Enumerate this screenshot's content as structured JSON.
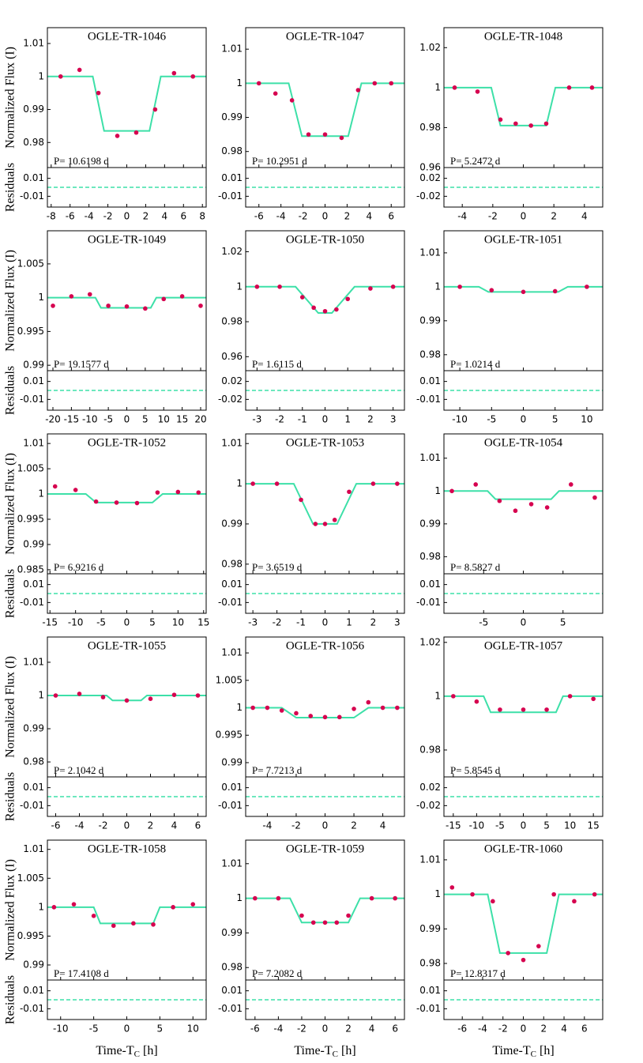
{
  "ylabel": "Normalized Flux (I)",
  "ylabel_resid": "Residuals",
  "xlabel": {
    "text": "Time-T",
    "sub": "C",
    "unit": "[h]"
  },
  "chart_data": [
    {
      "type": "line",
      "title": "OGLE-TR-1046",
      "annotation": "P= 10.6198 d",
      "xlim": [
        -8.4,
        8.4
      ],
      "xticks": [
        -8,
        -6,
        -4,
        -2,
        0,
        2,
        4,
        6,
        8
      ],
      "ylim": [
        0.9724,
        1.0148
      ],
      "yticks": [
        0.98,
        0.99,
        1,
        1.01
      ],
      "resid_ylim": [
        -0.022,
        0.022
      ],
      "resid_yticks": [
        -0.01,
        0.01
      ],
      "series": [
        {
          "color": "#3de0a8",
          "x": [
            -8.4,
            -3.6,
            -2.4,
            2.4,
            3.6,
            8.4
          ],
          "values": [
            1,
            1,
            0.9835,
            0.9835,
            1,
            1
          ]
        },
        {
          "color": "#d6004f",
          "x": [
            -7,
            -5,
            -3,
            -1,
            1,
            3,
            5,
            7
          ],
          "values": [
            1.0,
            1.002,
            0.995,
            0.982,
            0.983,
            0.99,
            1.001,
            1.0
          ]
        }
      ]
    },
    {
      "type": "line",
      "title": "OGLE-TR-1047",
      "annotation": "P= 10.2951 d",
      "xlim": [
        -7.2,
        7.2
      ],
      "xticks": [
        -6,
        -4,
        -2,
        0,
        2,
        4,
        6
      ],
      "ylim": [
        0.9753,
        1.0163
      ],
      "yticks": [
        0.98,
        0.99,
        1,
        1.01
      ],
      "resid_ylim": [
        -0.022,
        0.022
      ],
      "resid_yticks": [
        -0.01,
        0.01
      ],
      "series": [
        {
          "color": "#3de0a8",
          "x": [
            -7.2,
            -3.3,
            -2.1,
            2.1,
            3.3,
            7.2
          ],
          "values": [
            1,
            1,
            0.9845,
            0.9845,
            1,
            1
          ]
        },
        {
          "color": "#d6004f",
          "x": [
            -6,
            -4.5,
            -3,
            -1.5,
            0,
            1.5,
            3,
            4.5,
            6
          ],
          "values": [
            1.0,
            0.997,
            0.995,
            0.985,
            0.985,
            0.984,
            0.998,
            1.0,
            1.0
          ]
        }
      ]
    },
    {
      "type": "line",
      "title": "OGLE-TR-1048",
      "annotation": "P= 5.2472 d",
      "xlim": [
        -5.2,
        5.2
      ],
      "xticks": [
        -4,
        -2,
        0,
        2,
        4
      ],
      "ylim": [
        0.96,
        1.03
      ],
      "yticks": [
        0.96,
        0.98,
        1,
        1.02
      ],
      "resid_ylim": [
        -0.044,
        0.044
      ],
      "resid_yticks": [
        -0.02,
        0.02
      ],
      "series": [
        {
          "color": "#3de0a8",
          "x": [
            -5.2,
            -2.1,
            -1.5,
            1.5,
            2.1,
            5.2
          ],
          "values": [
            1,
            1,
            0.981,
            0.981,
            1,
            1
          ]
        },
        {
          "color": "#d6004f",
          "x": [
            -4.5,
            -3,
            -1.5,
            -0.5,
            0.5,
            1.5,
            3,
            4.5
          ],
          "values": [
            1.0,
            0.998,
            0.984,
            0.982,
            0.981,
            0.982,
            1.0,
            1.0
          ]
        }
      ]
    },
    {
      "type": "line",
      "title": "OGLE-TR-1049",
      "annotation": "P= 19.1577 d",
      "xlim": [
        -21.5,
        21.5
      ],
      "xticks": [
        -20,
        -15,
        -10,
        -5,
        0,
        5,
        10,
        15,
        20
      ],
      "ylim": [
        0.9892,
        1.0099
      ],
      "yticks": [
        0.99,
        0.995,
        1,
        1.005
      ],
      "resid_ylim": [
        -0.022,
        0.022
      ],
      "resid_yticks": [
        -0.01,
        0.01
      ],
      "series": [
        {
          "color": "#3de0a8",
          "x": [
            -21.5,
            -8.5,
            -7,
            6.5,
            8,
            21.5
          ],
          "values": [
            1,
            1,
            0.9985,
            0.9985,
            1,
            1
          ]
        },
        {
          "color": "#d6004f",
          "x": [
            -20,
            -15,
            -10,
            -5,
            0,
            5,
            10,
            15,
            20
          ],
          "values": [
            0.9988,
            1.0002,
            1.0005,
            0.9988,
            0.9987,
            0.9984,
            0.9998,
            1.0002,
            0.9988
          ]
        }
      ]
    },
    {
      "type": "line",
      "title": "OGLE-TR-1050",
      "annotation": "P= 1.6115 d",
      "xlim": [
        -3.5,
        3.5
      ],
      "xticks": [
        -3,
        -2,
        -1,
        0,
        1,
        2,
        3
      ],
      "ylim": [
        0.952,
        1.032
      ],
      "yticks": [
        0.96,
        0.98,
        1,
        1.02
      ],
      "resid_ylim": [
        -0.044,
        0.044
      ],
      "resid_yticks": [
        -0.02,
        0.02
      ],
      "series": [
        {
          "color": "#3de0a8",
          "x": [
            -3.5,
            -1.3,
            -0.3,
            0.3,
            1.3,
            3.5
          ],
          "values": [
            1,
            1,
            0.985,
            0.985,
            1,
            1
          ]
        },
        {
          "color": "#d6004f",
          "x": [
            -3,
            -2,
            -1,
            -0.5,
            0,
            0.5,
            1,
            2,
            3
          ],
          "values": [
            1.0,
            1.0,
            0.994,
            0.988,
            0.986,
            0.987,
            0.993,
            0.999,
            1.0
          ]
        }
      ]
    },
    {
      "type": "line",
      "title": "OGLE-TR-1051",
      "annotation": "P= 1.0214 d",
      "xlim": [
        -12.5,
        12.5
      ],
      "xticks": [
        -10,
        -5,
        0,
        5,
        10
      ],
      "ylim": [
        0.9753,
        1.0165
      ],
      "yticks": [
        0.98,
        0.99,
        1,
        1.01
      ],
      "resid_ylim": [
        -0.022,
        0.022
      ],
      "resid_yticks": [
        -0.01,
        0.01
      ],
      "series": [
        {
          "color": "#3de0a8",
          "x": [
            -12.5,
            -7,
            -5.5,
            5.5,
            7,
            12.5
          ],
          "values": [
            1,
            1,
            0.9985,
            0.9985,
            1,
            1
          ]
        },
        {
          "color": "#d6004f",
          "x": [
            -10,
            -5,
            0,
            5,
            10
          ],
          "values": [
            1.0,
            0.999,
            0.9985,
            0.9987,
            1.0
          ]
        }
      ]
    },
    {
      "type": "line",
      "title": "OGLE-TR-1052",
      "annotation": "P= 6.9216 d",
      "xlim": [
        -15.5,
        15.5
      ],
      "xticks": [
        -15,
        -10,
        -5,
        0,
        5,
        10,
        15
      ],
      "ylim": [
        0.9842,
        1.0119
      ],
      "yticks": [
        0.985,
        0.99,
        0.995,
        1,
        1.005,
        1.01
      ],
      "resid_ylim": [
        -0.022,
        0.022
      ],
      "resid_yticks": [
        -0.01,
        0.01
      ],
      "series": [
        {
          "color": "#3de0a8",
          "x": [
            -15.5,
            -8,
            -6,
            5,
            7,
            15.5
          ],
          "values": [
            1,
            1,
            0.9983,
            0.9983,
            1,
            1
          ]
        },
        {
          "color": "#d6004f",
          "x": [
            -14,
            -10,
            -6,
            -2,
            2,
            6,
            10,
            14
          ],
          "values": [
            1.0015,
            1.0008,
            0.9985,
            0.9983,
            0.9982,
            1.0003,
            1.0004,
            1.0003
          ]
        }
      ]
    },
    {
      "type": "line",
      "title": "OGLE-TR-1053",
      "annotation": "P= 3.6519 d",
      "xlim": [
        -3.3,
        3.3
      ],
      "xticks": [
        -3,
        -2,
        -1,
        0,
        1,
        2,
        3
      ],
      "ylim": [
        0.9776,
        1.0124
      ],
      "yticks": [
        0.98,
        0.99,
        1,
        1.01
      ],
      "resid_ylim": [
        -0.022,
        0.022
      ],
      "resid_yticks": [
        -0.01,
        0.01
      ],
      "series": [
        {
          "color": "#3de0a8",
          "x": [
            -3.3,
            -1.3,
            -0.5,
            0.5,
            1.3,
            3.3
          ],
          "values": [
            1,
            1,
            0.99,
            0.99,
            1,
            1
          ]
        },
        {
          "color": "#d6004f",
          "x": [
            -3,
            -2,
            -1,
            -0.4,
            0,
            0.4,
            1,
            2,
            3
          ],
          "values": [
            1.0,
            1.0,
            0.996,
            0.99,
            0.99,
            0.991,
            0.998,
            1.0,
            1.0
          ]
        }
      ]
    },
    {
      "type": "line",
      "title": "OGLE-TR-1054",
      "annotation": "P= 8.5827 d",
      "xlim": [
        -10,
        10
      ],
      "xticks": [
        -5,
        0,
        5
      ],
      "ylim": [
        0.9748,
        1.0174
      ],
      "yticks": [
        0.98,
        0.99,
        1,
        1.01
      ],
      "resid_ylim": [
        -0.022,
        0.022
      ],
      "resid_yticks": [
        -0.01,
        0.01
      ],
      "series": [
        {
          "color": "#3de0a8",
          "x": [
            -10,
            -4.5,
            -3.5,
            3.5,
            4.5,
            10
          ],
          "values": [
            1,
            1,
            0.9975,
            0.9975,
            1,
            1
          ]
        },
        {
          "color": "#d6004f",
          "x": [
            -9,
            -6,
            -3,
            -1,
            1,
            3,
            6,
            9
          ],
          "values": [
            1.0,
            1.002,
            0.997,
            0.994,
            0.996,
            0.995,
            1.002,
            0.998
          ]
        }
      ]
    },
    {
      "type": "line",
      "title": "OGLE-TR-1055",
      "annotation": "P= 2.1042 d",
      "xlim": [
        -6.7,
        6.7
      ],
      "xticks": [
        -6,
        -4,
        -2,
        0,
        2,
        4,
        6
      ],
      "ylim": [
        0.9755,
        1.0176
      ],
      "yticks": [
        0.98,
        0.99,
        1,
        1.01
      ],
      "resid_ylim": [
        -0.022,
        0.022
      ],
      "resid_yticks": [
        -0.01,
        0.01
      ],
      "series": [
        {
          "color": "#3de0a8",
          "x": [
            -6.7,
            -1.7,
            -1.2,
            1.2,
            1.7,
            6.7
          ],
          "values": [
            1,
            1,
            0.9985,
            0.9985,
            1,
            1
          ]
        },
        {
          "color": "#d6004f",
          "x": [
            -6,
            -4,
            -2,
            0,
            2,
            4,
            6
          ],
          "values": [
            1.0,
            1.0005,
            0.9995,
            0.9985,
            0.999,
            1.0002,
            1.0
          ]
        }
      ]
    },
    {
      "type": "line",
      "title": "OGLE-TR-1056",
      "annotation": "P= 7.7213 d",
      "xlim": [
        -5.5,
        5.5
      ],
      "xticks": [
        -4,
        -2,
        0,
        2,
        4
      ],
      "ylim": [
        0.9874,
        1.0129
      ],
      "yticks": [
        0.99,
        0.995,
        1,
        1.005,
        1.01
      ],
      "resid_ylim": [
        -0.022,
        0.022
      ],
      "resid_yticks": [
        -0.01,
        0.01
      ],
      "series": [
        {
          "color": "#3de0a8",
          "x": [
            -5.5,
            -3,
            -2,
            2,
            3,
            5.5
          ],
          "values": [
            1,
            1,
            0.9982,
            0.9982,
            1,
            1
          ]
        },
        {
          "color": "#d6004f",
          "x": [
            -5,
            -4,
            -3,
            -2,
            -1,
            0,
            1,
            2,
            3,
            4,
            5
          ],
          "values": [
            1.0,
            1.0,
            0.9995,
            0.999,
            0.9985,
            0.9983,
            0.9983,
            0.9998,
            1.001,
            1.0,
            1.0
          ]
        }
      ]
    },
    {
      "type": "line",
      "title": "OGLE-TR-1057",
      "annotation": "P= 5.8545 d",
      "xlim": [
        -17,
        17
      ],
      "xticks": [
        -15,
        -10,
        -5,
        0,
        5,
        10,
        15
      ],
      "ylim": [
        0.97,
        1.022
      ],
      "yticks": [
        0.98,
        1,
        1.02
      ],
      "resid_ylim": [
        -0.044,
        0.044
      ],
      "resid_yticks": [
        -0.02,
        0.02
      ],
      "series": [
        {
          "color": "#3de0a8",
          "x": [
            -17,
            -8.5,
            -7,
            7,
            8.5,
            17
          ],
          "values": [
            1,
            1,
            0.994,
            0.994,
            1,
            1
          ]
        },
        {
          "color": "#d6004f",
          "x": [
            -15,
            -10,
            -5,
            0,
            5,
            10,
            15
          ],
          "values": [
            1.0,
            0.998,
            0.995,
            0.995,
            0.995,
            1.0,
            0.999
          ]
        }
      ]
    },
    {
      "type": "line",
      "title": "OGLE-TR-1058",
      "annotation": "P= 17.4108 d",
      "xlim": [
        -12,
        12
      ],
      "xticks": [
        -10,
        -5,
        0,
        5,
        10
      ],
      "ylim": [
        0.9874,
        1.0116
      ],
      "yticks": [
        0.99,
        0.995,
        1,
        1.005,
        1.01
      ],
      "resid_ylim": [
        -0.022,
        0.022
      ],
      "resid_yticks": [
        -0.01,
        0.01
      ],
      "series": [
        {
          "color": "#3de0a8",
          "x": [
            -12,
            -5,
            -4,
            4,
            5,
            12
          ],
          "values": [
            1,
            1,
            0.9972,
            0.9972,
            1,
            1
          ]
        },
        {
          "color": "#d6004f",
          "x": [
            -11,
            -8,
            -5,
            -2,
            1,
            4,
            7,
            10
          ],
          "values": [
            1.0,
            1.0005,
            0.9985,
            0.9968,
            0.9972,
            0.997,
            1.0,
            1.0005
          ]
        }
      ]
    },
    {
      "type": "line",
      "title": "OGLE-TR-1059",
      "annotation": "P= 7.2082 d",
      "xlim": [
        -6.8,
        6.8
      ],
      "xticks": [
        -6,
        -4,
        -2,
        0,
        2,
        4,
        6
      ],
      "ylim": [
        0.9764,
        1.0168
      ],
      "yticks": [
        0.98,
        0.99,
        1,
        1.01
      ],
      "resid_ylim": [
        -0.022,
        0.022
      ],
      "resid_yticks": [
        -0.01,
        0.01
      ],
      "series": [
        {
          "color": "#3de0a8",
          "x": [
            -6.8,
            -3,
            -2,
            2,
            3,
            6.8
          ],
          "values": [
            1,
            1,
            0.993,
            0.993,
            1,
            1
          ]
        },
        {
          "color": "#d6004f",
          "x": [
            -6,
            -4,
            -2,
            -1,
            0,
            1,
            2,
            4,
            6
          ],
          "values": [
            1.0,
            1.0,
            0.995,
            0.993,
            0.993,
            0.993,
            0.995,
            1.0,
            1.0
          ]
        }
      ]
    },
    {
      "type": "line",
      "title": "OGLE-TR-1060",
      "annotation": "P= 12.8317 d",
      "xlim": [
        -7.8,
        7.8
      ],
      "xticks": [
        -6,
        -4,
        -2,
        0,
        2,
        4,
        6
      ],
      "ylim": [
        0.9752,
        1.0157
      ],
      "yticks": [
        0.98,
        0.99,
        1,
        1.01
      ],
      "resid_ylim": [
        -0.022,
        0.022
      ],
      "resid_yticks": [
        -0.01,
        0.01
      ],
      "series": [
        {
          "color": "#3de0a8",
          "x": [
            -7.8,
            -3.5,
            -2.3,
            2.3,
            3.5,
            7.8
          ],
          "values": [
            1,
            1,
            0.983,
            0.983,
            1,
            1
          ]
        },
        {
          "color": "#d6004f",
          "x": [
            -7,
            -5,
            -3,
            -1.5,
            0,
            1.5,
            3,
            5,
            7
          ],
          "values": [
            1.002,
            1.0,
            0.998,
            0.983,
            0.981,
            0.985,
            1.0,
            0.998,
            1.0
          ]
        }
      ]
    }
  ]
}
